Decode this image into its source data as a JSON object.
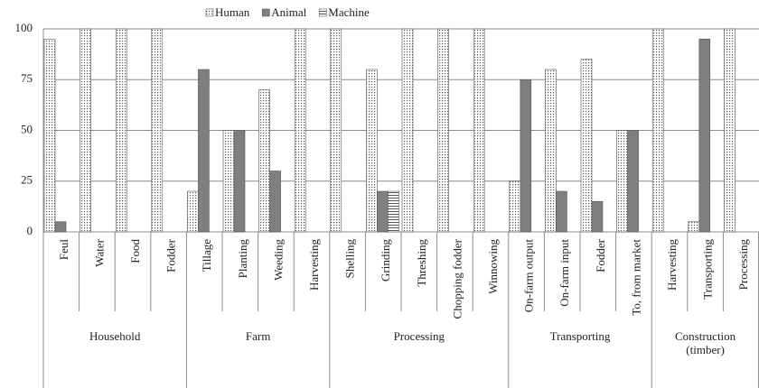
{
  "chart_data": {
    "type": "bar",
    "groups": [
      {
        "name": "Household",
        "categories": [
          "Feul",
          "Water",
          "Food",
          "Fodder"
        ]
      },
      {
        "name": "Farm",
        "categories": [
          "Tillage",
          "Planting",
          "Weeding",
          "Harvesting"
        ]
      },
      {
        "name": "Processing",
        "categories": [
          "Shelling",
          "Grinding",
          "Threshing",
          "Chopping fodder",
          "Winnowing"
        ]
      },
      {
        "name": "Transporting",
        "categories": [
          "On-farm output",
          "On-farm input",
          "Fodder",
          "To, from market"
        ]
      },
      {
        "name": "Construction (timber)",
        "categories": [
          "Harvesting",
          "Transporting",
          "Processing"
        ]
      }
    ],
    "series": [
      {
        "name": "Human",
        "color": "#555555",
        "pattern": "dots",
        "values": [
          95,
          100,
          100,
          100,
          20,
          50,
          70,
          100,
          100,
          80,
          100,
          100,
          100,
          25,
          80,
          85,
          50,
          100,
          5,
          100
        ]
      },
      {
        "name": "Animal",
        "color": "#7f7f7f",
        "pattern": "solid",
        "values": [
          5,
          0,
          0,
          0,
          80,
          50,
          30,
          0,
          0,
          20,
          0,
          0,
          0,
          75,
          20,
          15,
          50,
          0,
          95,
          0
        ]
      },
      {
        "name": "Machine",
        "color": "#555555",
        "pattern": "hlines",
        "values": [
          0,
          0,
          0,
          0,
          0,
          0,
          0,
          0,
          0,
          20,
          0,
          0,
          0,
          0,
          0,
          0,
          0,
          0,
          0,
          0
        ]
      }
    ],
    "ylim": [
      0,
      100
    ],
    "yticks": [
      0,
      25,
      50,
      75,
      100
    ],
    "grid": true,
    "legend": "top"
  }
}
